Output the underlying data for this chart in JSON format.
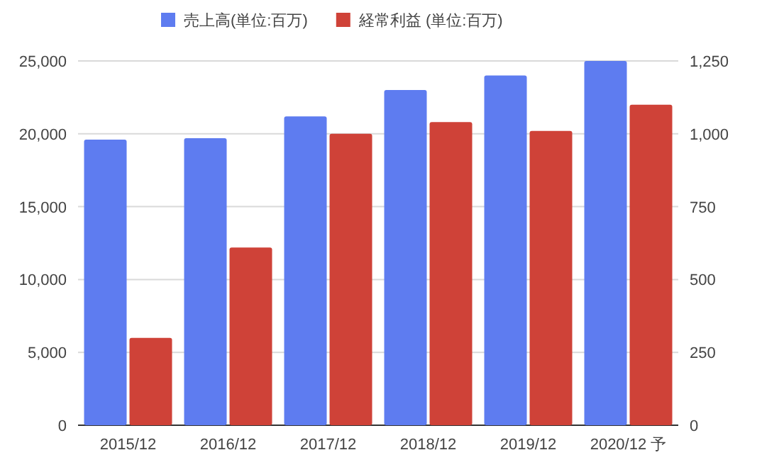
{
  "chart_data": {
    "type": "bar",
    "categories": [
      "2015/12",
      "2016/12",
      "2017/12",
      "2018/12",
      "2019/12",
      "2020/12 予"
    ],
    "series": [
      {
        "name": "売上高(単位:百万)",
        "color": "#5e7cf0",
        "values": [
          19600,
          19700,
          21200,
          23000,
          24000,
          25000
        ]
      },
      {
        "name": "経常利益 (単位:百万)",
        "color": "#cf4238",
        "axis": "y2",
        "values": [
          300,
          610,
          1000,
          1040,
          1010,
          1100
        ]
      }
    ],
    "ylim": [
      0,
      25000
    ],
    "yticks": [
      {
        "value": 0,
        "label": "0"
      },
      {
        "value": 5000,
        "label": "5,000"
      },
      {
        "value": 10000,
        "label": "10,000"
      },
      {
        "value": 15000,
        "label": "15,000"
      },
      {
        "value": 20000,
        "label": "20,000"
      },
      {
        "value": 25000,
        "label": "25,000"
      }
    ],
    "y2lim": [
      0,
      1250
    ],
    "y2ticks": [
      {
        "value": 0,
        "label": "0"
      },
      {
        "value": 250,
        "label": "250"
      },
      {
        "value": 500,
        "label": "500"
      },
      {
        "value": 750,
        "label": "750"
      },
      {
        "value": 1000,
        "label": "1,000"
      },
      {
        "value": 1250,
        "label": "1,250"
      }
    ],
    "grid": "y",
    "legend": "top"
  }
}
